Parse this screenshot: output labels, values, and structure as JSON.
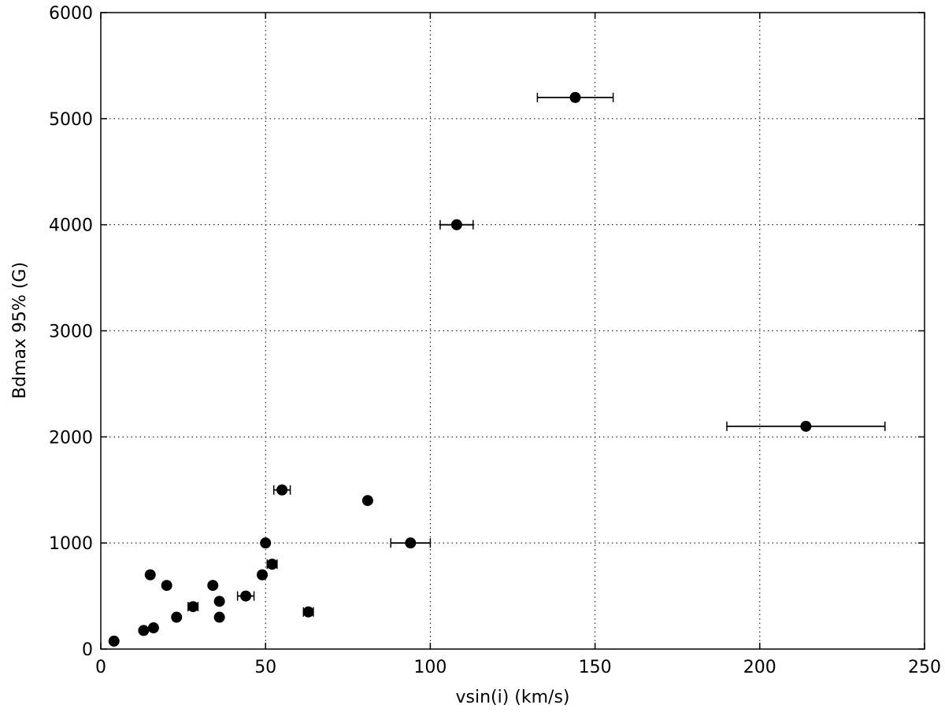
{
  "chart_data": {
    "type": "scatter",
    "title": "",
    "xlabel": "vsin(i) (km/s)",
    "ylabel": "Bdmax 95% (G)",
    "xlim": [
      0,
      250
    ],
    "ylim": [
      0,
      6000
    ],
    "xticks": [
      0,
      50,
      100,
      150,
      200,
      250
    ],
    "yticks": [
      0,
      1000,
      2000,
      3000,
      4000,
      5000,
      6000
    ],
    "xtick_labels": [
      "0",
      "50",
      "100",
      "150",
      "200",
      "250"
    ],
    "ytick_labels": [
      "0",
      "1000",
      "2000",
      "3000",
      "4000",
      "5000",
      "6000"
    ],
    "grid": true,
    "marker_color": "#000000",
    "points": [
      {
        "x": 4,
        "y": 75,
        "xerr": 0
      },
      {
        "x": 13,
        "y": 175,
        "xerr": 0
      },
      {
        "x": 16,
        "y": 200,
        "xerr": 0
      },
      {
        "x": 15,
        "y": 700,
        "xerr": 0
      },
      {
        "x": 20,
        "y": 600,
        "xerr": 0
      },
      {
        "x": 23,
        "y": 300,
        "xerr": 0
      },
      {
        "x": 28,
        "y": 400,
        "xerr": 1.5
      },
      {
        "x": 34,
        "y": 600,
        "xerr": 0
      },
      {
        "x": 36,
        "y": 450,
        "xerr": 0
      },
      {
        "x": 36,
        "y": 300,
        "xerr": 0
      },
      {
        "x": 44,
        "y": 500,
        "xerr": 2.5
      },
      {
        "x": 49,
        "y": 700,
        "xerr": 0
      },
      {
        "x": 50,
        "y": 1000,
        "xerr": 0
      },
      {
        "x": 52,
        "y": 800,
        "xerr": 1.5
      },
      {
        "x": 55,
        "y": 1500,
        "xerr": 2.5
      },
      {
        "x": 63,
        "y": 350,
        "xerr": 1.5
      },
      {
        "x": 81,
        "y": 1400,
        "xerr": 0
      },
      {
        "x": 94,
        "y": 1000,
        "xerr": 6
      },
      {
        "x": 108,
        "y": 4000,
        "xerr": 5
      },
      {
        "x": 144,
        "y": 5200,
        "xerr": 11.5
      },
      {
        "x": 214,
        "y": 2100,
        "xerr": 24
      }
    ]
  }
}
